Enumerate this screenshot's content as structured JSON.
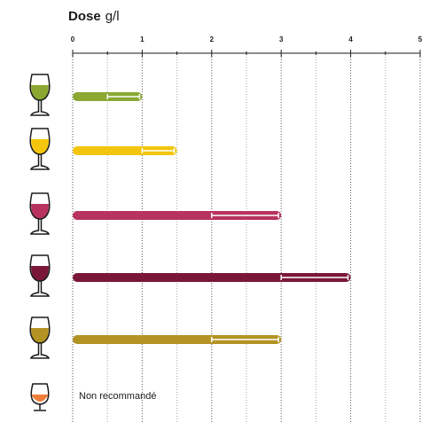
{
  "chart_data": {
    "type": "range_bar",
    "title": "Dose",
    "unit": "g/l",
    "xlim": [
      0,
      5
    ],
    "xticks": [
      0,
      1,
      2,
      3,
      4,
      5
    ],
    "minor_xticks": [
      0.5,
      1.5,
      2.5,
      3.5,
      4.5
    ],
    "grid": true,
    "rows": [
      {
        "color": "#8aa832",
        "min": 0.5,
        "max": 1
      },
      {
        "color": "#f3c50c",
        "min": 1,
        "max": 1.5
      },
      {
        "color": "#b8335f",
        "min": 2,
        "max": 3
      },
      {
        "color": "#7a1738",
        "min": 3,
        "max": 4
      },
      {
        "color": "#b39322",
        "min": 2,
        "max": 3
      },
      {
        "color": "#ee7d3a",
        "label": "Non recommandé"
      }
    ]
  }
}
